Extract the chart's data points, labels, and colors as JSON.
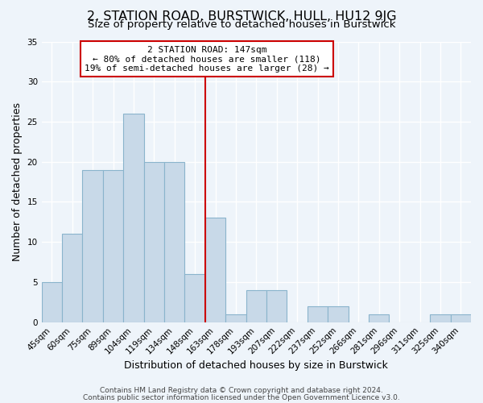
{
  "title": "2, STATION ROAD, BURSTWICK, HULL, HU12 9JG",
  "subtitle": "Size of property relative to detached houses in Burstwick",
  "xlabel": "Distribution of detached houses by size in Burstwick",
  "ylabel": "Number of detached properties",
  "bin_labels": [
    "45sqm",
    "60sqm",
    "75sqm",
    "89sqm",
    "104sqm",
    "119sqm",
    "134sqm",
    "148sqm",
    "163sqm",
    "178sqm",
    "193sqm",
    "207sqm",
    "222sqm",
    "237sqm",
    "252sqm",
    "266sqm",
    "281sqm",
    "296sqm",
    "311sqm",
    "325sqm",
    "340sqm"
  ],
  "bar_heights": [
    5,
    11,
    19,
    19,
    26,
    20,
    20,
    6,
    13,
    1,
    4,
    4,
    0,
    2,
    2,
    0,
    1,
    0,
    0,
    1,
    1
  ],
  "bar_color": "#c8d9e8",
  "bar_edge_color": "#8ab4cc",
  "vline_x": 7.5,
  "vline_color": "#cc0000",
  "annotation_title": "2 STATION ROAD: 147sqm",
  "annotation_line1": "← 80% of detached houses are smaller (118)",
  "annotation_line2": "19% of semi-detached houses are larger (28) →",
  "ylim": [
    0,
    35
  ],
  "yticks": [
    0,
    5,
    10,
    15,
    20,
    25,
    30,
    35
  ],
  "footer1": "Contains HM Land Registry data © Crown copyright and database right 2024.",
  "footer2": "Contains public sector information licensed under the Open Government Licence v3.0.",
  "background_color": "#eef4fa",
  "grid_color": "#ffffff",
  "title_fontsize": 11.5,
  "subtitle_fontsize": 9.5,
  "axis_label_fontsize": 9,
  "tick_fontsize": 7.5,
  "footer_fontsize": 6.5
}
